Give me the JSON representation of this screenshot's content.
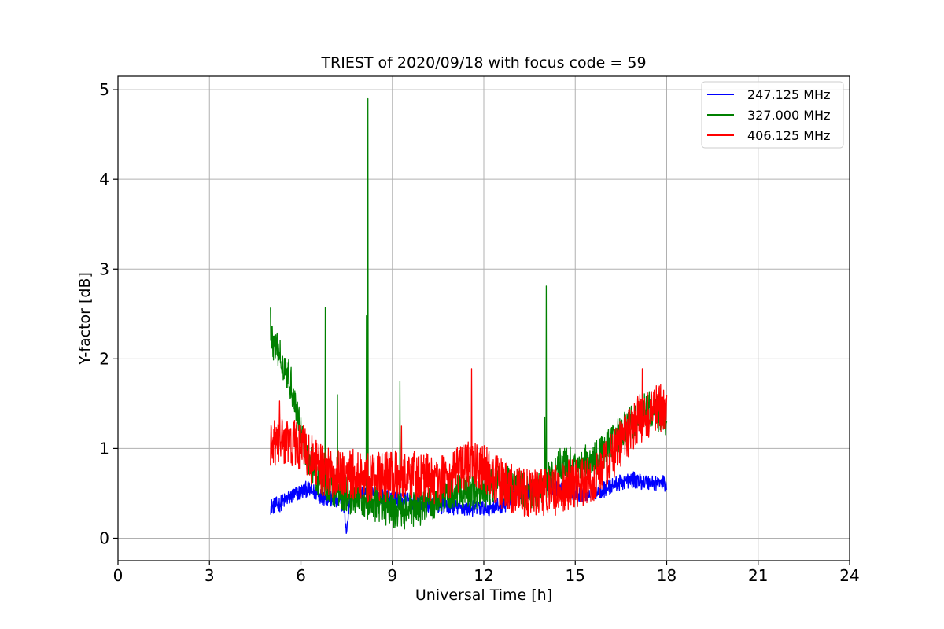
{
  "chart_data": {
    "type": "line",
    "title": "TRIEST of 2020/09/18 with focus code = 59",
    "xlabel": "Universal Time [h]",
    "ylabel": "Y-factor [dB]",
    "xlim": [
      0,
      24
    ],
    "ylim": [
      -0.25,
      5.15
    ],
    "xticks": [
      0,
      3,
      6,
      9,
      12,
      15,
      18,
      21,
      24
    ],
    "yticks": [
      0,
      1,
      2,
      3,
      4,
      5
    ],
    "grid": true,
    "legend_position": "top-right",
    "series": [
      {
        "name": "247.125 MHz",
        "color": "#0000ff",
        "points": [
          [
            5.0,
            0.35
          ],
          [
            5.3,
            0.38
          ],
          [
            5.6,
            0.45
          ],
          [
            5.9,
            0.5
          ],
          [
            6.2,
            0.55
          ],
          [
            6.5,
            0.5
          ],
          [
            6.8,
            0.45
          ],
          [
            7.1,
            0.42
          ],
          [
            7.4,
            0.38
          ],
          [
            7.5,
            0.05
          ],
          [
            7.6,
            0.45
          ],
          [
            7.9,
            0.5
          ],
          [
            8.2,
            0.5
          ],
          [
            8.5,
            0.48
          ],
          [
            8.8,
            0.45
          ],
          [
            9.1,
            0.43
          ],
          [
            9.4,
            0.42
          ],
          [
            9.7,
            0.4
          ],
          [
            10.0,
            0.38
          ],
          [
            10.3,
            0.37
          ],
          [
            10.6,
            0.36
          ],
          [
            10.9,
            0.35
          ],
          [
            11.2,
            0.34
          ],
          [
            11.5,
            0.33
          ],
          [
            11.8,
            0.33
          ],
          [
            12.1,
            0.34
          ],
          [
            12.4,
            0.35
          ],
          [
            12.7,
            0.38
          ],
          [
            13.0,
            0.45
          ],
          [
            13.3,
            0.5
          ],
          [
            13.6,
            0.55
          ],
          [
            13.9,
            0.6
          ],
          [
            14.2,
            0.58
          ],
          [
            14.5,
            0.55
          ],
          [
            14.8,
            0.52
          ],
          [
            15.1,
            0.5
          ],
          [
            15.4,
            0.5
          ],
          [
            15.7,
            0.52
          ],
          [
            16.0,
            0.55
          ],
          [
            16.3,
            0.6
          ],
          [
            16.6,
            0.63
          ],
          [
            16.9,
            0.65
          ],
          [
            17.2,
            0.63
          ],
          [
            17.5,
            0.62
          ],
          [
            17.8,
            0.62
          ],
          [
            18.0,
            0.6
          ]
        ]
      },
      {
        "name": "327.000 MHz",
        "color": "#008000",
        "points": [
          [
            5.0,
            2.3
          ],
          [
            5.1,
            2.15
          ],
          [
            5.3,
            2.05
          ],
          [
            5.5,
            1.9
          ],
          [
            5.7,
            1.7
          ],
          [
            5.9,
            1.35
          ],
          [
            6.1,
            1.05
          ],
          [
            6.3,
            0.85
          ],
          [
            6.5,
            0.7
          ],
          [
            6.8,
            0.6
          ],
          [
            7.1,
            0.55
          ],
          [
            7.4,
            0.5
          ],
          [
            7.7,
            0.45
          ],
          [
            8.0,
            0.42
          ],
          [
            8.2,
            0.4
          ],
          [
            8.5,
            0.38
          ],
          [
            8.8,
            0.33
          ],
          [
            9.1,
            0.3
          ],
          [
            9.4,
            0.3
          ],
          [
            9.7,
            0.32
          ],
          [
            10.0,
            0.35
          ],
          [
            10.3,
            0.4
          ],
          [
            10.6,
            0.45
          ],
          [
            10.9,
            0.5
          ],
          [
            11.2,
            0.52
          ],
          [
            11.5,
            0.5
          ],
          [
            11.8,
            0.5
          ],
          [
            12.1,
            0.55
          ],
          [
            12.4,
            0.6
          ],
          [
            12.7,
            0.62
          ],
          [
            13.0,
            0.58
          ],
          [
            13.3,
            0.55
          ],
          [
            13.6,
            0.5
          ],
          [
            13.9,
            0.55
          ],
          [
            14.2,
            0.7
          ],
          [
            14.5,
            0.8
          ],
          [
            14.8,
            0.82
          ],
          [
            15.1,
            0.82
          ],
          [
            15.4,
            0.85
          ],
          [
            15.7,
            0.9
          ],
          [
            16.0,
            1.0
          ],
          [
            16.3,
            1.1
          ],
          [
            16.6,
            1.2
          ],
          [
            16.9,
            1.3
          ],
          [
            17.2,
            1.4
          ],
          [
            17.5,
            1.45
          ],
          [
            17.8,
            1.35
          ],
          [
            18.0,
            1.3
          ]
        ],
        "spikes": [
          [
            5.0,
            2.57
          ],
          [
            6.8,
            2.57
          ],
          [
            7.2,
            1.6
          ],
          [
            8.15,
            2.48
          ],
          [
            8.2,
            4.9
          ],
          [
            9.25,
            1.75
          ],
          [
            14.0,
            1.35
          ],
          [
            14.05,
            2.81
          ]
        ]
      },
      {
        "name": "406.125 MHz",
        "color": "#ff0000",
        "points": [
          [
            5.0,
            1.0
          ],
          [
            5.2,
            1.08
          ],
          [
            5.4,
            1.1
          ],
          [
            5.6,
            1.05
          ],
          [
            5.8,
            1.05
          ],
          [
            6.0,
            1.0
          ],
          [
            6.2,
            0.95
          ],
          [
            6.4,
            0.85
          ],
          [
            6.7,
            0.75
          ],
          [
            7.0,
            0.72
          ],
          [
            7.3,
            0.7
          ],
          [
            7.6,
            0.72
          ],
          [
            7.9,
            0.7
          ],
          [
            8.2,
            0.68
          ],
          [
            8.5,
            0.7
          ],
          [
            8.8,
            0.68
          ],
          [
            9.1,
            0.7
          ],
          [
            9.4,
            0.72
          ],
          [
            9.7,
            0.7
          ],
          [
            10.0,
            0.68
          ],
          [
            10.3,
            0.65
          ],
          [
            10.6,
            0.65
          ],
          [
            10.9,
            0.7
          ],
          [
            11.2,
            0.75
          ],
          [
            11.5,
            0.8
          ],
          [
            11.8,
            0.78
          ],
          [
            12.1,
            0.75
          ],
          [
            12.4,
            0.65
          ],
          [
            12.7,
            0.58
          ],
          [
            13.0,
            0.55
          ],
          [
            13.3,
            0.52
          ],
          [
            13.6,
            0.5
          ],
          [
            13.9,
            0.5
          ],
          [
            14.2,
            0.52
          ],
          [
            14.5,
            0.55
          ],
          [
            14.8,
            0.6
          ],
          [
            15.1,
            0.62
          ],
          [
            15.4,
            0.62
          ],
          [
            15.7,
            0.68
          ],
          [
            16.0,
            0.8
          ],
          [
            16.3,
            0.95
          ],
          [
            16.6,
            1.1
          ],
          [
            16.9,
            1.25
          ],
          [
            17.2,
            1.35
          ],
          [
            17.5,
            1.42
          ],
          [
            17.8,
            1.45
          ],
          [
            18.0,
            1.4
          ]
        ],
        "spikes": [
          [
            5.3,
            1.53
          ],
          [
            9.3,
            1.25
          ],
          [
            11.6,
            1.89
          ],
          [
            17.2,
            1.89
          ]
        ]
      }
    ]
  }
}
